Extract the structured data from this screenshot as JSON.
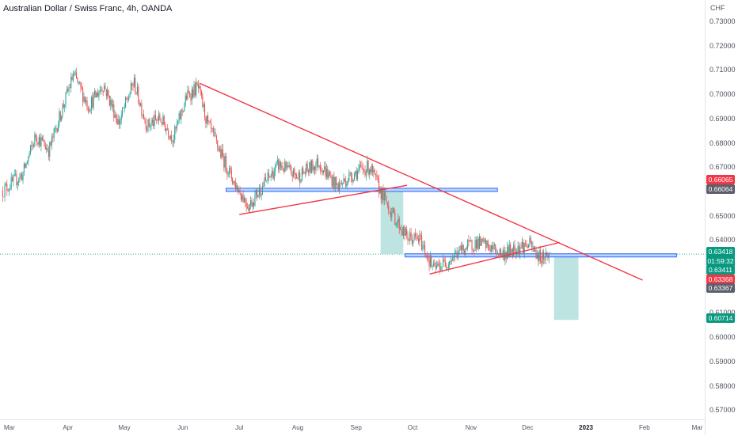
{
  "header": {
    "symbol_title": "Australian Dollar / Swiss Franc, 4h, OANDA"
  },
  "price_axis": {
    "unit": "CHF",
    "ticks": [
      "0.73000",
      "0.72000",
      "0.71000",
      "0.70000",
      "0.69000",
      "0.68000",
      "0.67000",
      "0.66000",
      "0.65000",
      "0.64000",
      "0.63000",
      "0.62000",
      "0.61000",
      "0.60000",
      "0.59000",
      "0.58000",
      "0.57000"
    ],
    "labels": {
      "red_upper": "0.66065",
      "gray_upper": "0.66064",
      "last_price": "0.63418",
      "countdown": "01:59:32",
      "green_mid": "0.63411",
      "red_lower": "0.63368",
      "gray_lower": "0.63367",
      "target": "0.60714"
    }
  },
  "time_axis": {
    "ticks": [
      "Mar",
      "Apr",
      "May",
      "Jun",
      "Jul",
      "Aug",
      "Sep",
      "Oct",
      "Nov",
      "Dec",
      "2023",
      "Feb",
      "Mar"
    ]
  },
  "colors": {
    "candle_up": "#26a69a",
    "candle_down": "#ef5350",
    "trendline": "#f23645",
    "zone_border": "#2962ff",
    "zone_fill": "#bbd6fb",
    "target_box": "#b2dfdb",
    "last_price_line": "#26a69a",
    "gray_label": "#5d606b",
    "red_label": "#f23645",
    "green_label": "#089981"
  },
  "chart_data": {
    "type": "candlestick",
    "instrument": "AUDCHF",
    "timeframe": "4h",
    "ylim": [
      0.563,
      0.737
    ],
    "approx_close_path": [
      {
        "date": "2022-02-25",
        "close": 0.66
      },
      {
        "date": "2022-03-08",
        "close": 0.667
      },
      {
        "date": "2022-03-15",
        "close": 0.683
      },
      {
        "date": "2022-03-22",
        "close": 0.677
      },
      {
        "date": "2022-03-29",
        "close": 0.694
      },
      {
        "date": "2022-04-04",
        "close": 0.708
      },
      {
        "date": "2022-04-12",
        "close": 0.695
      },
      {
        "date": "2022-04-20",
        "close": 0.704
      },
      {
        "date": "2022-04-28",
        "close": 0.688
      },
      {
        "date": "2022-05-06",
        "close": 0.705
      },
      {
        "date": "2022-05-13",
        "close": 0.687
      },
      {
        "date": "2022-05-20",
        "close": 0.69
      },
      {
        "date": "2022-05-27",
        "close": 0.682
      },
      {
        "date": "2022-06-03",
        "close": 0.699
      },
      {
        "date": "2022-06-09",
        "close": 0.703
      },
      {
        "date": "2022-06-14",
        "close": 0.688
      },
      {
        "date": "2022-06-21",
        "close": 0.676
      },
      {
        "date": "2022-06-28",
        "close": 0.664
      },
      {
        "date": "2022-07-06",
        "close": 0.654
      },
      {
        "date": "2022-07-14",
        "close": 0.663
      },
      {
        "date": "2022-07-22",
        "close": 0.671
      },
      {
        "date": "2022-08-01",
        "close": 0.666
      },
      {
        "date": "2022-08-12",
        "close": 0.672
      },
      {
        "date": "2022-08-22",
        "close": 0.662
      },
      {
        "date": "2022-09-01",
        "close": 0.668
      },
      {
        "date": "2022-09-08",
        "close": 0.67
      },
      {
        "date": "2022-09-14",
        "close": 0.66
      },
      {
        "date": "2022-09-20",
        "close": 0.651
      },
      {
        "date": "2022-09-28",
        "close": 0.641
      },
      {
        "date": "2022-10-05",
        "close": 0.64
      },
      {
        "date": "2022-10-12",
        "close": 0.628
      },
      {
        "date": "2022-10-19",
        "close": 0.631
      },
      {
        "date": "2022-10-27",
        "close": 0.636
      },
      {
        "date": "2022-11-04",
        "close": 0.639
      },
      {
        "date": "2022-11-11",
        "close": 0.637
      },
      {
        "date": "2022-11-18",
        "close": 0.634
      },
      {
        "date": "2022-11-25",
        "close": 0.637
      },
      {
        "date": "2022-12-02",
        "close": 0.638
      },
      {
        "date": "2022-12-07",
        "close": 0.633
      },
      {
        "date": "2022-12-13",
        "close": 0.634
      }
    ],
    "drawings": {
      "descending_trendline": [
        {
          "date": "2022-06-10",
          "price": 0.7045
        },
        {
          "date": "2023-01-31",
          "price": 0.6235
        }
      ],
      "support_trendline_1": [
        {
          "date": "2022-07-01",
          "price": 0.6505
        },
        {
          "date": "2022-09-28",
          "price": 0.6625
        }
      ],
      "support_trendline_2": [
        {
          "date": "2022-10-10",
          "price": 0.626
        },
        {
          "date": "2022-12-18",
          "price": 0.639
        }
      ],
      "horizontal_zone_upper": {
        "price": 0.66064,
        "from": "2022-06-24",
        "to": "2022-11-15"
      },
      "horizontal_zone_lower": {
        "price": 0.63367,
        "from": "2022-09-27",
        "to": "2023-02-18"
      },
      "drop_box_1": {
        "top": 0.66,
        "bottom": 0.6342
      },
      "projected_drop_box": {
        "top": 0.6342,
        "bottom": 0.6071
      }
    }
  }
}
